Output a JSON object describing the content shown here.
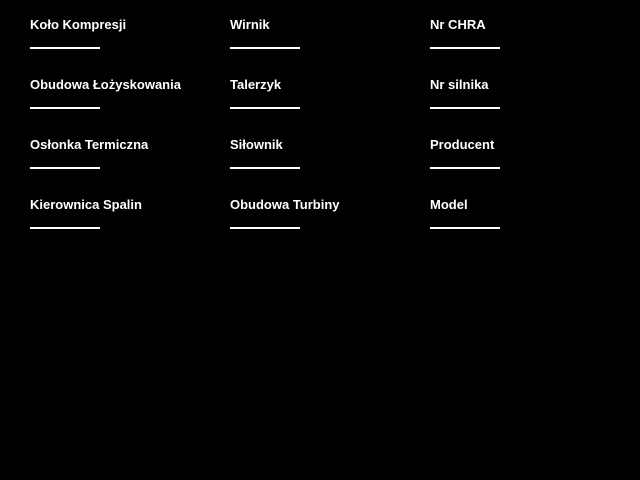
{
  "theme": {
    "background": "#000000",
    "label_color": "#ffffff",
    "underline_color": "#ffffff"
  },
  "form": {
    "columns": [
      {
        "fields": [
          {
            "label": "Koło Kompresji",
            "value": ""
          },
          {
            "label": "Obudowa Łożyskowania",
            "value": ""
          },
          {
            "label": "Osłonka Termiczna",
            "value": ""
          },
          {
            "label": "Kierownica Spalin",
            "value": ""
          }
        ]
      },
      {
        "fields": [
          {
            "label": "Wirnik",
            "value": ""
          },
          {
            "label": "Talerzyk",
            "value": ""
          },
          {
            "label": "Siłownik",
            "value": ""
          },
          {
            "label": "Obudowa Turbiny",
            "value": ""
          }
        ]
      },
      {
        "fields": [
          {
            "label": "Nr CHRA",
            "value": ""
          },
          {
            "label": "Nr silnika",
            "value": ""
          },
          {
            "label": "Producent",
            "value": ""
          },
          {
            "label": "Model",
            "value": ""
          }
        ]
      }
    ]
  }
}
